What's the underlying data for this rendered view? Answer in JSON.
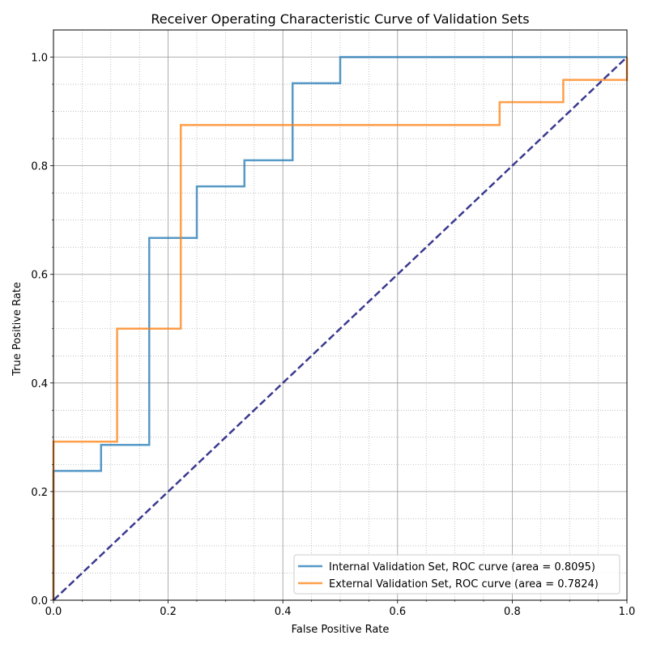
{
  "chart_data": {
    "type": "line",
    "title": "Receiver Operating Characteristic Curve of Validation Sets",
    "xlabel": "False Positive Rate",
    "ylabel": "True Positive Rate",
    "xlim": [
      0.0,
      1.0
    ],
    "ylim": [
      0.0,
      1.05
    ],
    "xticks": [
      "0.0",
      "0.2",
      "0.4",
      "0.6",
      "0.8",
      "1.0"
    ],
    "yticks": [
      "0.0",
      "0.2",
      "0.4",
      "0.6",
      "0.8",
      "1.0"
    ],
    "grid": true,
    "minor_grid": true,
    "legend_position": "lower-right",
    "series": [
      {
        "name": "Internal Validation Set, ROC curve (area = 0.8095)",
        "color": "#1f77b4",
        "style": "step",
        "points": [
          [
            0.0,
            0.0
          ],
          [
            0.0,
            0.238
          ],
          [
            0.083,
            0.238
          ],
          [
            0.083,
            0.286
          ],
          [
            0.167,
            0.286
          ],
          [
            0.167,
            0.667
          ],
          [
            0.25,
            0.667
          ],
          [
            0.25,
            0.762
          ],
          [
            0.333,
            0.762
          ],
          [
            0.333,
            0.81
          ],
          [
            0.417,
            0.81
          ],
          [
            0.417,
            0.952
          ],
          [
            0.5,
            0.952
          ],
          [
            0.5,
            1.0
          ],
          [
            1.0,
            1.0
          ]
        ]
      },
      {
        "name": "External Validation Set, ROC curve (area = 0.7824)",
        "color": "#ff7f0e",
        "style": "step",
        "points": [
          [
            0.0,
            0.0
          ],
          [
            0.0,
            0.292
          ],
          [
            0.111,
            0.292
          ],
          [
            0.111,
            0.5
          ],
          [
            0.222,
            0.5
          ],
          [
            0.222,
            0.875
          ],
          [
            0.778,
            0.875
          ],
          [
            0.778,
            0.917
          ],
          [
            0.889,
            0.917
          ],
          [
            0.889,
            0.958
          ],
          [
            1.0,
            0.958
          ],
          [
            1.0,
            1.0
          ]
        ]
      },
      {
        "color": "#3a3a90",
        "style": "dashed",
        "points": [
          [
            0.0,
            0.0
          ],
          [
            1.0,
            1.0
          ]
        ]
      }
    ]
  }
}
